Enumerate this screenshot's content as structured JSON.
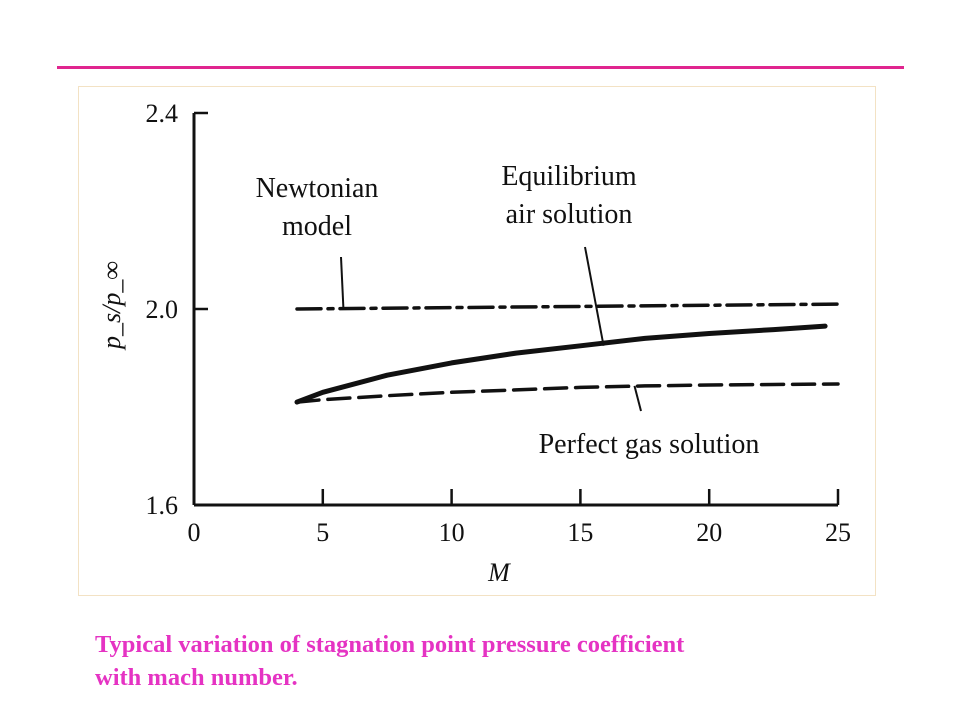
{
  "colors": {
    "accent": "#e0258f",
    "caption": "#e533c3",
    "ink": "#111111"
  },
  "caption": {
    "line1": "Typical variation of stagnation point pressure coefficient",
    "line2": "with mach number."
  },
  "chart_data": {
    "type": "line",
    "title": "",
    "xlabel": "M",
    "ylabel": "p_s/p_∞",
    "xlim": [
      0,
      25
    ],
    "ylim": [
      1.6,
      2.4
    ],
    "x_ticks": [
      0,
      5,
      10,
      15,
      20,
      25
    ],
    "y_ticks": [
      1.6,
      2.0,
      2.4
    ],
    "x_tick_labels": [
      "0",
      "5",
      "10",
      "15",
      "20",
      "25"
    ],
    "y_tick_labels": [
      "1.6",
      "2.0",
      "2.4"
    ],
    "grid": false,
    "legend": "none",
    "series": [
      {
        "name": "Newtonian model",
        "style": "dash-dot",
        "x": [
          4,
          25
        ],
        "y": [
          2.0,
          2.01
        ]
      },
      {
        "name": "Equilibrium air solution",
        "style": "solid",
        "x": [
          4,
          5,
          7.5,
          10,
          12.5,
          15,
          17.5,
          20,
          22.5,
          24.5
        ],
        "y": [
          1.81,
          1.83,
          1.865,
          1.89,
          1.91,
          1.925,
          1.94,
          1.95,
          1.958,
          1.965
        ]
      },
      {
        "name": "Perfect gas solution",
        "style": "dashed",
        "x": [
          4,
          5,
          7.5,
          10,
          12.5,
          15,
          17.5,
          20,
          22.5,
          25
        ],
        "y": [
          1.81,
          1.815,
          1.823,
          1.83,
          1.835,
          1.84,
          1.843,
          1.845,
          1.846,
          1.847
        ]
      }
    ],
    "annotations": [
      {
        "target": "Newtonian model",
        "lines": [
          "Newtonian",
          "model"
        ]
      },
      {
        "target": "Equilibrium air solution",
        "lines": [
          "Equilibrium",
          "air solution"
        ]
      },
      {
        "target": "Perfect gas solution",
        "lines": [
          "Perfect gas solution"
        ]
      }
    ]
  }
}
